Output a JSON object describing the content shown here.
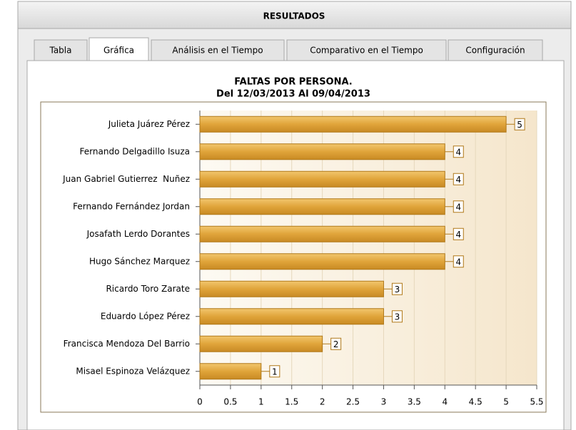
{
  "window": {
    "title": "RESULTADOS",
    "tabs": [
      "Tabla",
      "Gráfica",
      "Análisis en el Tiempo",
      "Comparativo en el Tiempo",
      "Configuración"
    ]
  },
  "chart_data": {
    "type": "bar",
    "orientation": "horizontal",
    "title": "FALTAS POR PERSONA.",
    "subtitle": "Del 12/03/2013 Al 09/04/2013",
    "categories": [
      "Julieta Juárez Pérez",
      "Fernando Delgadillo Isuza",
      "Juan Gabriel Gutierrez  Nuñez",
      "Fernando Fernández Jordan",
      "Josafath Lerdo Dorantes",
      "Hugo Sánchez Marquez",
      "Ricardo Toro Zarate",
      "Eduardo López Pérez",
      "Francisca Mendoza Del Barrio",
      "Misael Espinoza Velázquez"
    ],
    "values": [
      5,
      4,
      4,
      4,
      4,
      4,
      3,
      3,
      2,
      1
    ],
    "color": "#e0a43a",
    "xlim": [
      0,
      5.5
    ],
    "xticks": [
      0,
      0.5,
      1,
      1.5,
      2,
      2.5,
      3,
      3.5,
      4,
      4.5,
      5,
      5.5
    ],
    "grid": true
  }
}
